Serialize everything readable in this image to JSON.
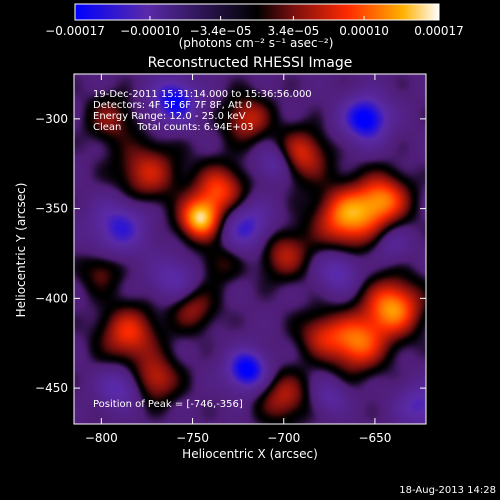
{
  "chart_data": {
    "type": "heatmap",
    "title": "Reconstructed RHESSI Image",
    "xlabel": "Heliocentric X (arcsec)",
    "ylabel": "Heliocentric Y (arcsec)",
    "xlim": [
      -815,
      -622
    ],
    "ylim": [
      -470,
      -275
    ],
    "x_ticks": [
      -800,
      -750,
      -700,
      -650
    ],
    "y_ticks": [
      -300,
      -350,
      -400,
      -450
    ],
    "colorbar": {
      "range": [
        -0.00017,
        0.00017
      ],
      "tick_values": [
        -0.00017,
        -0.0001,
        -3.4e-05,
        3.4e-05,
        0.0001,
        0.00017
      ],
      "tick_labels": [
        "-0.00017",
        "-0.00010",
        "-3.4e-05",
        "3.4e-05",
        "0.00010",
        "0.00017"
      ],
      "units": "(photons cm⁻² s⁻¹ asec⁻²)",
      "colors": [
        "#0000ff",
        "#5a2aa8",
        "#000000",
        "#7a0f0f",
        "#ff2a00",
        "#ffb000",
        "#ffffff"
      ]
    },
    "annotations": [
      "19-Dec-2011 15:31:14.000 to 15:36:56.000",
      "Detectors: 4F 5F 6F 7F 8F, Att 0",
      "Energy Range: 12.0 - 25.0 keV",
      "Clean     Total counts: 6.94E+03"
    ],
    "peak_label": "Position of Peak = [-746,-356]",
    "peak": [
      -746,
      -356
    ],
    "sources": [
      {
        "x": -746,
        "y": -356,
        "amp": 1.0,
        "w": 8
      },
      {
        "x": -735,
        "y": -340,
        "amp": 0.7,
        "w": 10
      },
      {
        "x": -665,
        "y": -355,
        "amp": 0.9,
        "w": 12
      },
      {
        "x": -645,
        "y": -345,
        "amp": 0.75,
        "w": 10
      },
      {
        "x": -690,
        "y": -320,
        "amp": 0.6,
        "w": 10
      },
      {
        "x": -720,
        "y": -300,
        "amp": 0.55,
        "w": 9
      },
      {
        "x": -775,
        "y": -330,
        "amp": 0.55,
        "w": 12
      },
      {
        "x": -795,
        "y": -300,
        "amp": 0.4,
        "w": 9
      },
      {
        "x": -700,
        "y": -375,
        "amp": 0.5,
        "w": 10
      },
      {
        "x": -640,
        "y": -405,
        "amp": 0.9,
        "w": 11
      },
      {
        "x": -660,
        "y": -425,
        "amp": 0.8,
        "w": 11
      },
      {
        "x": -700,
        "y": -455,
        "amp": 0.5,
        "w": 10
      },
      {
        "x": -680,
        "y": -420,
        "amp": 0.45,
        "w": 9
      },
      {
        "x": -785,
        "y": -420,
        "amp": 0.65,
        "w": 11
      },
      {
        "x": -770,
        "y": -445,
        "amp": 0.55,
        "w": 9
      },
      {
        "x": -750,
        "y": -405,
        "amp": 0.45,
        "w": 9
      },
      {
        "x": -735,
        "y": -380,
        "amp": 0.3,
        "w": 8
      },
      {
        "x": -800,
        "y": -385,
        "amp": 0.35,
        "w": 8
      },
      {
        "x": -760,
        "y": -290,
        "amp": -0.8,
        "w": 9
      },
      {
        "x": -655,
        "y": -300,
        "amp": -0.9,
        "w": 9
      },
      {
        "x": -720,
        "y": -440,
        "amp": -0.9,
        "w": 8
      },
      {
        "x": -720,
        "y": -360,
        "amp": -0.6,
        "w": 10
      },
      {
        "x": -790,
        "y": -360,
        "amp": -0.6,
        "w": 11
      },
      {
        "x": -790,
        "y": -450,
        "amp": -0.5,
        "w": 8
      },
      {
        "x": -670,
        "y": -385,
        "amp": -0.5,
        "w": 8
      },
      {
        "x": -625,
        "y": -460,
        "amp": -0.5,
        "w": 9
      },
      {
        "x": -705,
        "y": -325,
        "amp": -0.45,
        "w": 7
      },
      {
        "x": -640,
        "y": -370,
        "amp": -0.3,
        "w": 7
      },
      {
        "x": -760,
        "y": -390,
        "amp": -0.45,
        "w": 9
      },
      {
        "x": -675,
        "y": -455,
        "amp": -0.35,
        "w": 7
      }
    ]
  },
  "footer": {
    "timestamp": "18-Aug-2013 14:28"
  }
}
